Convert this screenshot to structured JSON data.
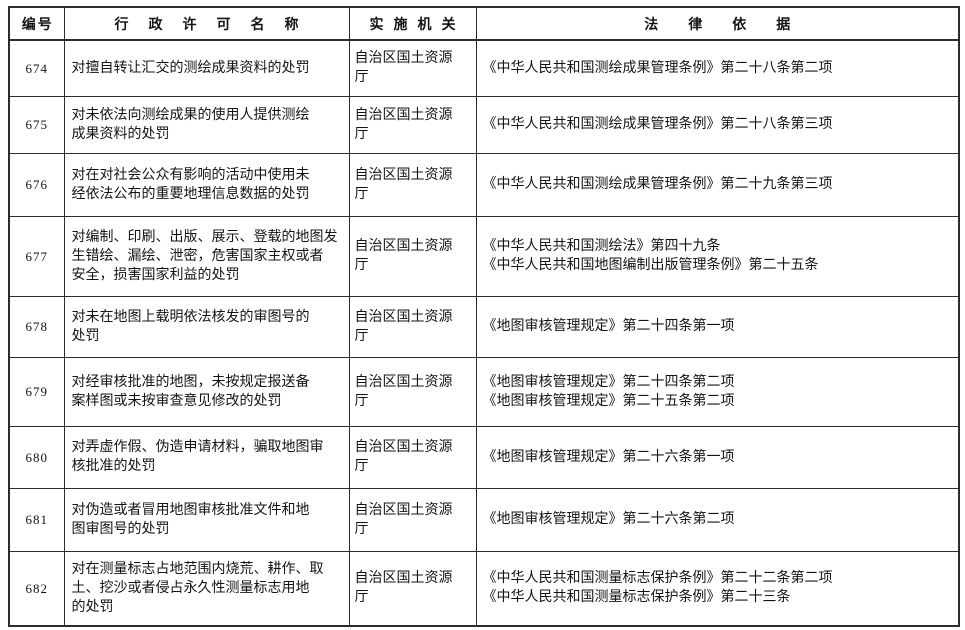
{
  "colors": {
    "background": "#ffffff",
    "border": "#2c2c2c",
    "text": "#141414"
  },
  "table": {
    "headers": {
      "id": "编号",
      "name": "行政许可名称",
      "agency": "实施机关",
      "legal": "法律依据"
    },
    "rows": [
      {
        "id": "674",
        "name": "对擅自转让汇交的测绘成果资料的处罚",
        "agency": "自治区国土资源\n厅",
        "legal": "《中华人民共和国测绘成果管理条例》第二十八条第二项"
      },
      {
        "id": "675",
        "name": "对未依法向测绘成果的使用人提供测绘\n成果资料的处罚",
        "agency": "自治区国土资源\n厅",
        "legal": "《中华人民共和国测绘成果管理条例》第二十八条第三项"
      },
      {
        "id": "676",
        "name": "对在对社会公众有影响的活动中使用未\n经依法公布的重要地理信息数据的处罚",
        "agency": "自治区国土资源\n厅",
        "legal": "《中华人民共和国测绘成果管理条例》第二十九条第三项"
      },
      {
        "id": "677",
        "name": "对编制、印刷、出版、展示、登载的地图发\n生错绘、漏绘、泄密，危害国家主权或者\n安全，损害国家利益的处罚",
        "agency": "自治区国土资源\n厅",
        "legal": "《中华人民共和国测绘法》第四十九条\n《中华人民共和国地图编制出版管理条例》第二十五条"
      },
      {
        "id": "678",
        "name": "对未在地图上载明依法核发的审图号的\n处罚",
        "agency": "自治区国土资源\n厅",
        "legal": "《地图审核管理规定》第二十四条第一项"
      },
      {
        "id": "679",
        "name": "对经审核批准的地图，未按规定报送备\n案样图或未按审查意见修改的处罚",
        "agency": "自治区国土资源\n厅",
        "legal": "《地图审核管理规定》第二十四条第二项\n《地图审核管理规定》第二十五条第二项"
      },
      {
        "id": "680",
        "name": "对弄虚作假、伪造申请材料，骗取地图审\n核批准的处罚",
        "agency": "自治区国土资源\n厅",
        "legal": "《地图审核管理规定》第二十六条第一项"
      },
      {
        "id": "681",
        "name": "对伪造或者冒用地图审核批准文件和地\n图审图号的处罚",
        "agency": "自治区国土资源\n厅",
        "legal": "《地图审核管理规定》第二十六条第二项"
      },
      {
        "id": "682",
        "name": "对在测量标志占地范围内烧荒、耕作、取\n土、挖沙或者侵占永久性测量标志用地\n的处罚",
        "agency": "自治区国土资源\n厅",
        "legal": "《中华人民共和国测量标志保护条例》第二十二条第二项\n《中华人民共和国测量标志保护条例》第二十三条"
      }
    ]
  }
}
